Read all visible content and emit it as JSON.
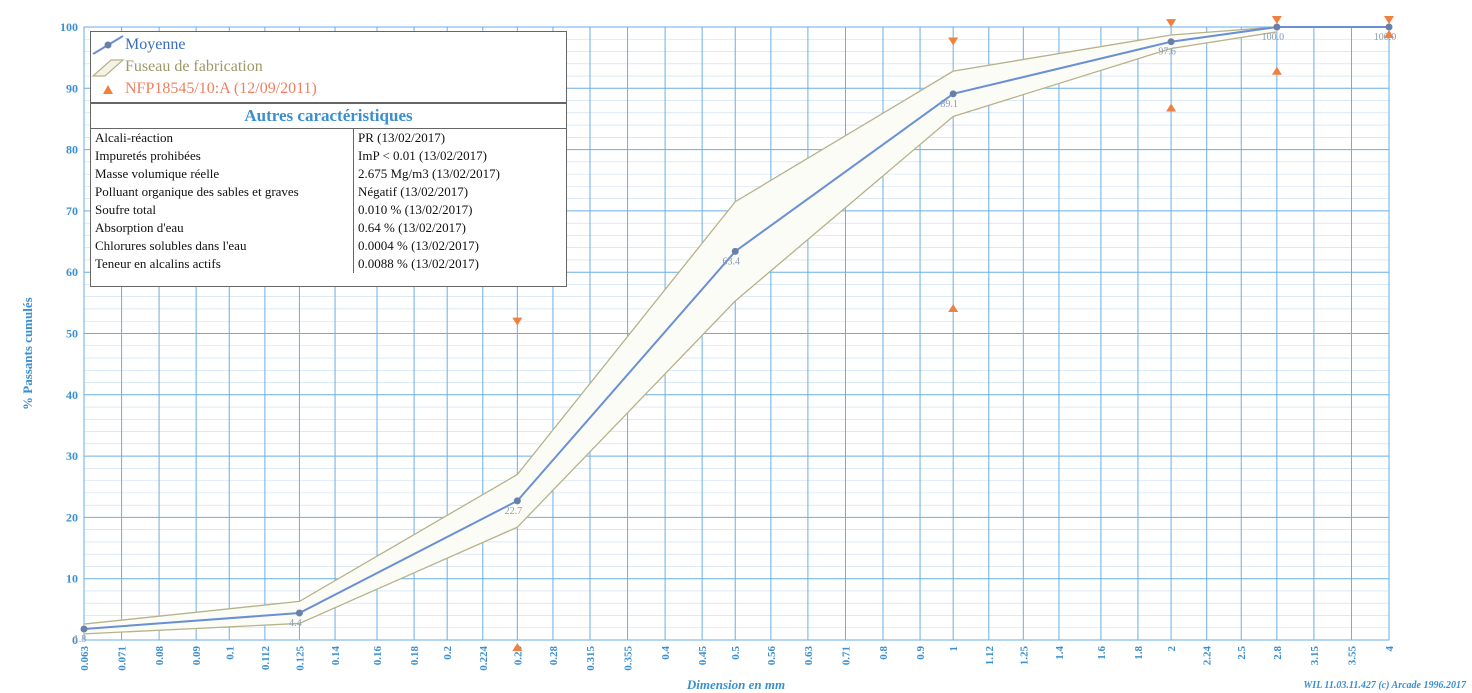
{
  "chart_data": {
    "type": "line",
    "ylabel": "% Passants cumulés",
    "xlabel": "Dimension en mm",
    "ylim": [
      0,
      100
    ],
    "y_ticks": [
      0,
      10,
      20,
      30,
      40,
      50,
      60,
      70,
      80,
      90,
      100
    ],
    "x_ticks": [
      "0.063",
      "0.071",
      "0.08",
      "0.09",
      "0.1",
      "0.112",
      "0.125",
      "0.14",
      "0.16",
      "0.18",
      "0.2",
      "0.224",
      "0.25",
      "0.28",
      "0.315",
      "0.355",
      "0.4",
      "0.45",
      "0.5",
      "0.56",
      "0.63",
      "0.71",
      "0.8",
      "0.9",
      "1",
      "1.12",
      "1.25",
      "1.4",
      "1.6",
      "1.8",
      "2",
      "2.24",
      "2.5",
      "2.8",
      "3.15",
      "3.55",
      "4"
    ],
    "x_scale": "log",
    "grid": true,
    "series": [
      {
        "name": "Moyenne",
        "color": "#6a8fd6",
        "points": [
          [
            0.063,
            1.8
          ],
          [
            0.125,
            4.4
          ],
          [
            0.25,
            22.7
          ],
          [
            0.5,
            63.4
          ],
          [
            1,
            89.1
          ],
          [
            2,
            97.6
          ],
          [
            2.8,
            100
          ],
          [
            4,
            100
          ]
        ],
        "labels": [
          "1.8",
          "4.4",
          "22.7",
          "63.4",
          "89.1",
          "97.6",
          "100.0",
          "100.0"
        ]
      },
      {
        "name": "Fuseau de fabrication",
        "color": "#b6b28a",
        "upper": [
          [
            0.063,
            2.6
          ],
          [
            0.125,
            6.3
          ],
          [
            0.25,
            27.0
          ],
          [
            0.5,
            71.5
          ],
          [
            1,
            92.8
          ],
          [
            2,
            98.7
          ],
          [
            2.8,
            100
          ]
        ],
        "lower": [
          [
            0.063,
            1.0
          ],
          [
            0.125,
            2.7
          ],
          [
            0.25,
            18.4
          ],
          [
            0.5,
            55.3
          ],
          [
            1,
            85.4
          ],
          [
            2,
            96.5
          ],
          [
            2.8,
            99.2
          ]
        ]
      },
      {
        "name": "NFP18545/10:A (12/09/2011)",
        "color": "#f08040",
        "max_marks": [
          [
            0.25,
            50.8
          ],
          [
            1,
            96.5
          ],
          [
            2,
            99.5
          ],
          [
            2.8,
            100
          ],
          [
            4,
            100
          ]
        ],
        "min_marks": [
          [
            0.25,
            0
          ],
          [
            1,
            55.3
          ],
          [
            2,
            88.0
          ],
          [
            2.8,
            94.0
          ],
          [
            4,
            100
          ]
        ]
      }
    ]
  },
  "legend": {
    "moyenne": "Moyenne",
    "fuseau": "Fuseau de fabrication",
    "norme": "NFP18545/10:A (12/09/2011)"
  },
  "characteristics": {
    "title": "Autres caractéristiques",
    "rows": [
      {
        "name": "Alcali-réaction",
        "value": "PR  (13/02/2017)"
      },
      {
        "name": "Impuretés prohibées",
        "value": "ImP < 0.01  (13/02/2017)"
      },
      {
        "name": "Masse volumique réelle",
        "value": "2.675 Mg/m3  (13/02/2017)"
      },
      {
        "name": "Polluant organique des sables et graves",
        "value": "Négatif  (13/02/2017)"
      },
      {
        "name": "Soufre total",
        "value": "0.010 %  (13/02/2017)"
      },
      {
        "name": "Absorption d'eau",
        "value": "0.64 %  (13/02/2017)"
      },
      {
        "name": "Chlorures solubles dans l'eau",
        "value": "0.0004 %  (13/02/2017)"
      },
      {
        "name": "Teneur en alcalins actifs",
        "value": "0.0088 %  (13/02/2017)"
      }
    ]
  },
  "footer": {
    "credit": "WIL 11.03.11.427 (c) Arcade 1996.2017"
  }
}
